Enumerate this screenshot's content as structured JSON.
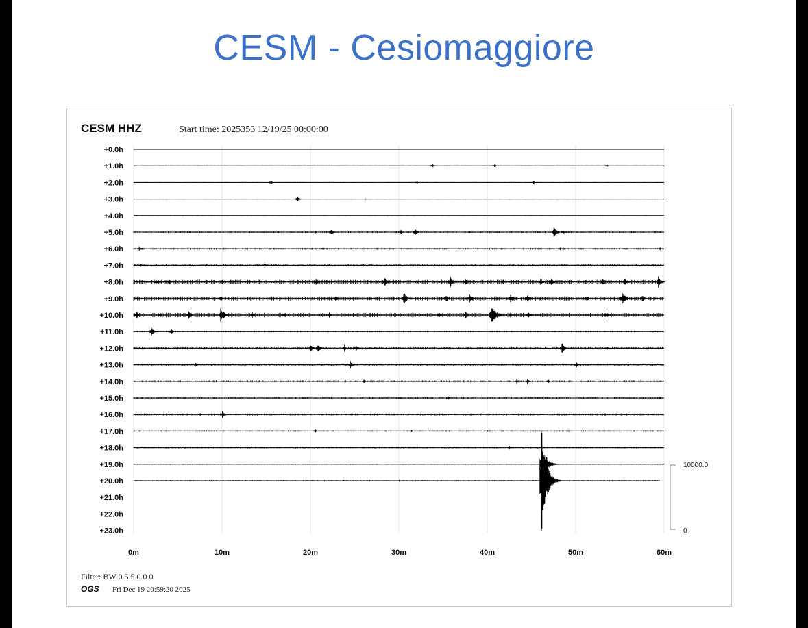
{
  "page": {
    "title": "CESM - Cesiomaggiore"
  },
  "chart_data": {
    "type": "line",
    "title": "CESM HHZ",
    "subtitle": "Start time: 2025353 12/19/25 00:00:00",
    "x_ticks": [
      "0m",
      "10m",
      "20m",
      "30m",
      "40m",
      "50m",
      "60m"
    ],
    "xlim": [
      0,
      60
    ],
    "row_labels": [
      "+0.0h",
      "+1.0h",
      "+2.0h",
      "+3.0h",
      "+4.0h",
      "+5.0h",
      "+6.0h",
      "+7.0h",
      "+8.0h",
      "+9.0h",
      "+10.0h",
      "+11.0h",
      "+12.0h",
      "+13.0h",
      "+14.0h",
      "+15.0h",
      "+16.0h",
      "+17.0h",
      "+18.0h",
      "+19.0h",
      "+20.0h",
      "+21.0h",
      "+22.0h",
      "+23.0h"
    ],
    "scale_bar": {
      "top_label": "10000.0",
      "bottom_label": "0"
    },
    "grid": true,
    "traces": [
      {
        "hour": 0,
        "noise": 0.3,
        "end_minute": 60,
        "events": []
      },
      {
        "hour": 1,
        "noise": 0.4,
        "end_minute": 60,
        "events": [
          [
            33.8,
            4
          ],
          [
            40.8,
            4
          ],
          [
            53.5,
            3
          ]
        ]
      },
      {
        "hour": 2,
        "noise": 0.4,
        "end_minute": 60,
        "events": [
          [
            15.5,
            4
          ],
          [
            32,
            3
          ],
          [
            45.2,
            3
          ]
        ]
      },
      {
        "hour": 3,
        "noise": 0.4,
        "end_minute": 60,
        "events": [
          [
            18.5,
            6
          ],
          [
            26.2,
            2
          ]
        ]
      },
      {
        "hour": 4,
        "noise": 0.3,
        "end_minute": 60,
        "events": []
      },
      {
        "hour": 5,
        "noise": 0.8,
        "end_minute": 60,
        "events": [
          [
            20.5,
            3
          ],
          [
            22.3,
            6
          ],
          [
            30.2,
            5
          ],
          [
            31.8,
            7
          ],
          [
            37.9,
            3
          ],
          [
            47.5,
            9
          ],
          [
            48.6,
            4
          ]
        ]
      },
      {
        "hour": 6,
        "noise": 1.0,
        "end_minute": 60,
        "events": [
          [
            0.6,
            5
          ],
          [
            21.4,
            4
          ],
          [
            48.2,
            3
          ],
          [
            59.5,
            3
          ]
        ]
      },
      {
        "hour": 7,
        "noise": 1.1,
        "end_minute": 60,
        "events": [
          [
            0.8,
            3
          ],
          [
            14.8,
            5
          ],
          [
            16,
            3
          ],
          [
            25.9,
            4
          ],
          [
            58.8,
            3
          ]
        ]
      },
      {
        "hour": 8,
        "noise": 2.2,
        "end_minute": 60,
        "events": [
          [
            2.5,
            6
          ],
          [
            4,
            5
          ],
          [
            10,
            4
          ],
          [
            20.6,
            6
          ],
          [
            28.3,
            9
          ],
          [
            35.8,
            9
          ],
          [
            37.5,
            6
          ],
          [
            41.8,
            5
          ],
          [
            46,
            7
          ],
          [
            47.2,
            8
          ],
          [
            53,
            6
          ],
          [
            55.5,
            7
          ],
          [
            59.3,
            9
          ]
        ]
      },
      {
        "hour": 9,
        "noise": 2.2,
        "end_minute": 60,
        "events": [
          [
            0.4,
            4
          ],
          [
            9.8,
            5
          ],
          [
            22.8,
            6
          ],
          [
            30.5,
            11
          ],
          [
            35.3,
            7
          ],
          [
            38,
            8
          ],
          [
            42.6,
            7
          ],
          [
            44.5,
            8
          ],
          [
            51.3,
            5
          ],
          [
            55.2,
            12
          ],
          [
            57.5,
            7
          ]
        ]
      },
      {
        "hour": 10,
        "noise": 2.3,
        "end_minute": 60,
        "events": [
          [
            0.3,
            7
          ],
          [
            3,
            5
          ],
          [
            6.2,
            7
          ],
          [
            9.8,
            12
          ],
          [
            13.4,
            5
          ],
          [
            17,
            5
          ],
          [
            22.1,
            5
          ],
          [
            34.5,
            6
          ],
          [
            37.5,
            8
          ],
          [
            40.4,
            16
          ],
          [
            42.6,
            5
          ],
          [
            44.6,
            7
          ],
          [
            53.5,
            6
          ]
        ]
      },
      {
        "hour": 11,
        "noise": 0.8,
        "end_minute": 60,
        "events": [
          [
            2,
            8
          ],
          [
            4.2,
            6
          ]
        ]
      },
      {
        "hour": 12,
        "noise": 1.4,
        "end_minute": 60,
        "events": [
          [
            20,
            7
          ],
          [
            20.8,
            8
          ],
          [
            23.8,
            6
          ],
          [
            25.1,
            6
          ],
          [
            39.2,
            3
          ],
          [
            48.4,
            9
          ],
          [
            53.5,
            4
          ]
        ]
      },
      {
        "hour": 13,
        "noise": 1.0,
        "end_minute": 60,
        "events": [
          [
            7,
            4
          ],
          [
            24.5,
            7
          ],
          [
            50,
            6
          ]
        ]
      },
      {
        "hour": 14,
        "noise": 1.1,
        "end_minute": 60,
        "events": [
          [
            26,
            5
          ],
          [
            43.3,
            5
          ],
          [
            44.5,
            6
          ],
          [
            46.9,
            4
          ]
        ]
      },
      {
        "hour": 15,
        "noise": 0.9,
        "end_minute": 60,
        "events": [
          [
            35.6,
            4
          ],
          [
            59.5,
            3
          ]
        ]
      },
      {
        "hour": 16,
        "noise": 1.1,
        "end_minute": 60,
        "events": [
          [
            1.5,
            3
          ],
          [
            10,
            7
          ],
          [
            7.5,
            3
          ]
        ]
      },
      {
        "hour": 17,
        "noise": 0.8,
        "end_minute": 60,
        "events": [
          [
            20.5,
            4
          ],
          [
            31.4,
            3
          ]
        ]
      },
      {
        "hour": 18,
        "noise": 0.8,
        "end_minute": 60,
        "events": [
          [
            42.5,
            4
          ]
        ]
      },
      {
        "hour": 19,
        "noise": 0.6,
        "end_minute": 60,
        "events": [
          [
            46.1,
            35
          ]
        ]
      },
      {
        "hour": 20,
        "noise": 0.7,
        "end_minute": 59.5,
        "events": [
          [
            30,
            2
          ],
          [
            46.1,
            90
          ]
        ]
      },
      {
        "hour": 21,
        "noise": 0,
        "end_minute": 0,
        "events": []
      },
      {
        "hour": 22,
        "noise": 0,
        "end_minute": 0,
        "events": []
      },
      {
        "hour": 23,
        "noise": 0,
        "end_minute": 0,
        "events": []
      }
    ]
  },
  "footer": {
    "filter": "Filter: BW 0.5 5 0.0 0",
    "org": "OGS",
    "timestamp": "Fri Dec 19 20:59:20 2025"
  }
}
